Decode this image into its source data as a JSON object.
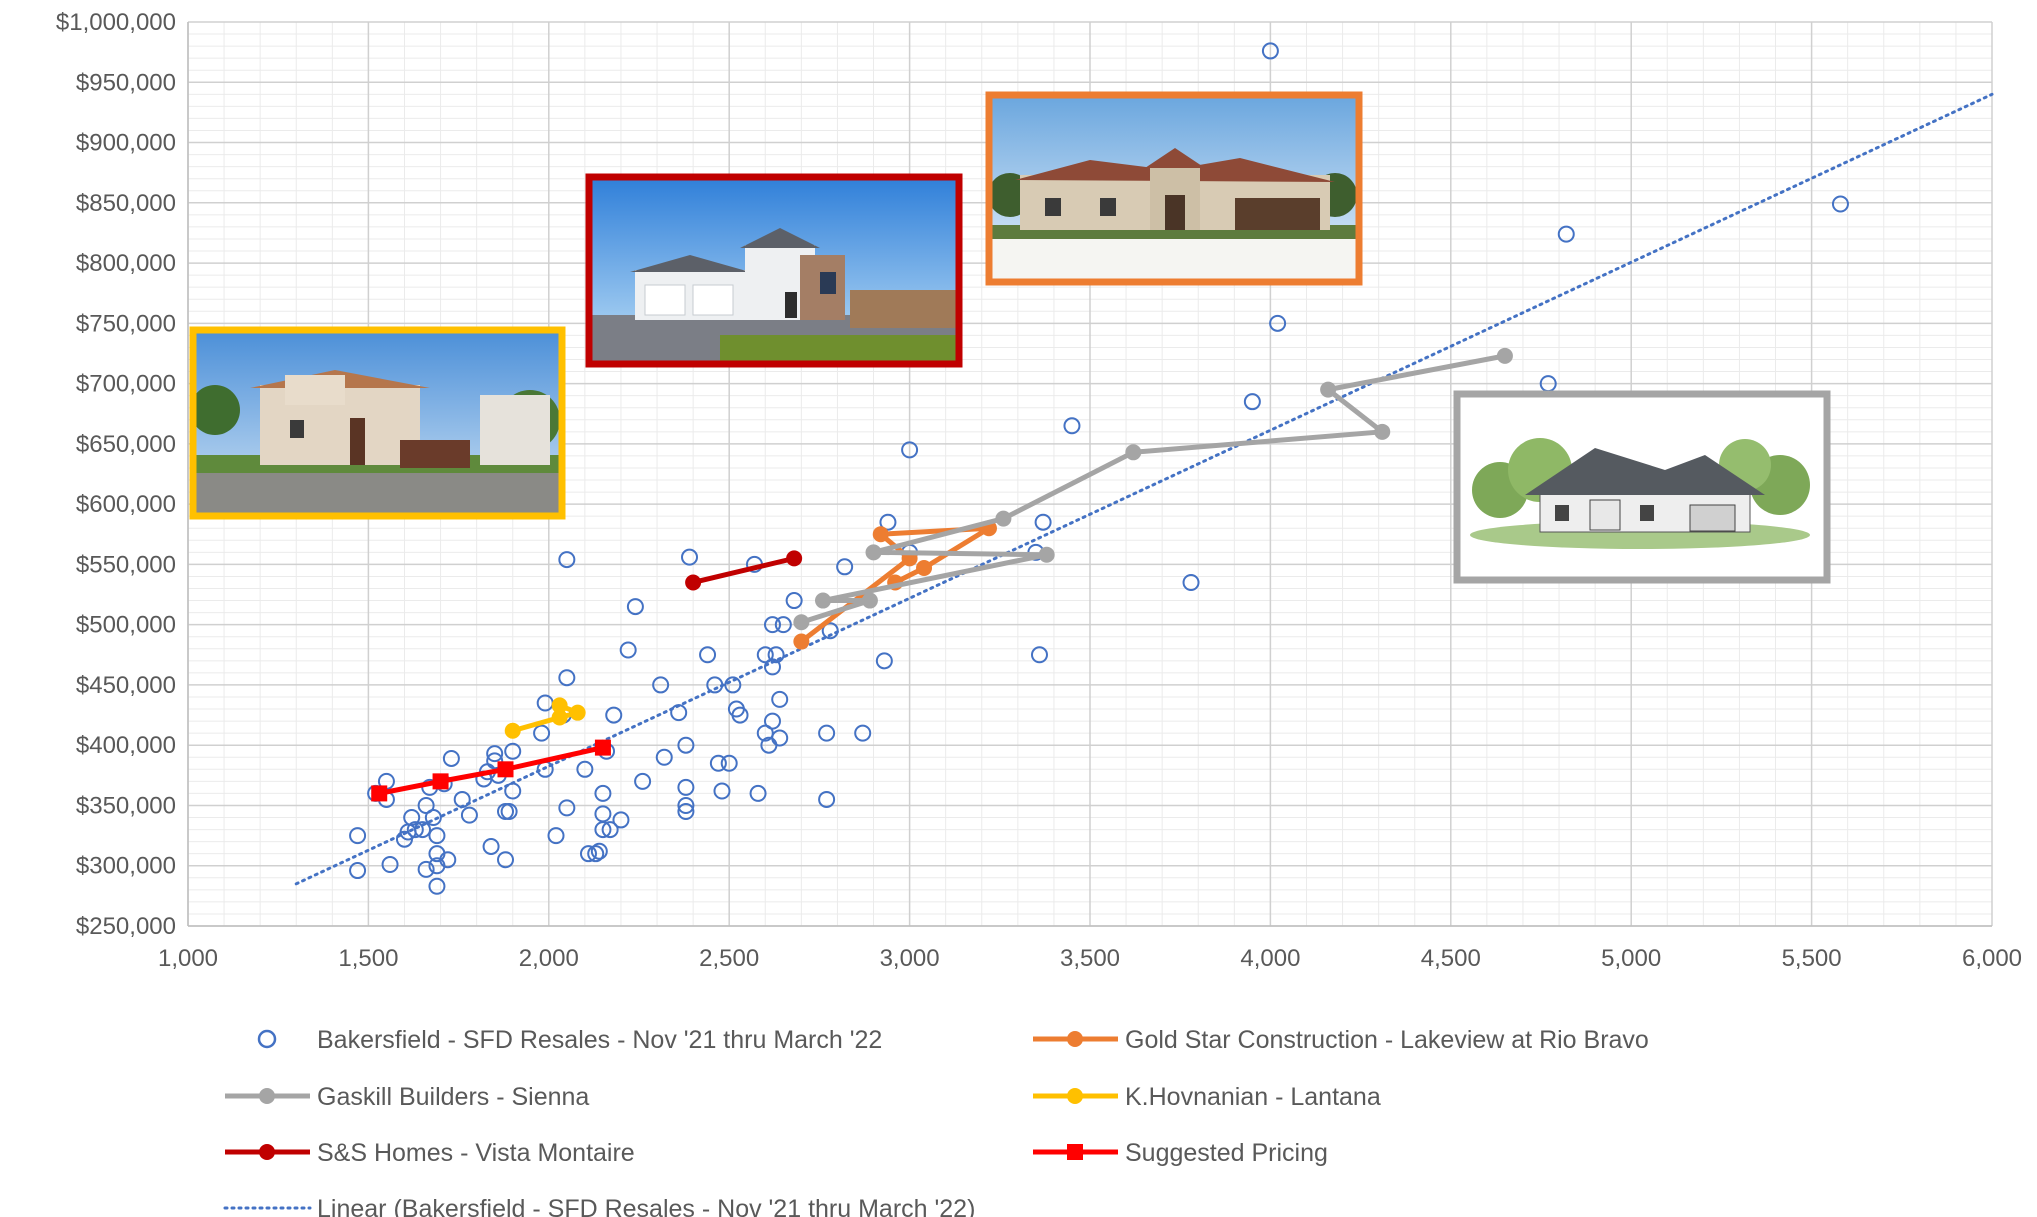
{
  "chart_data": {
    "type": "scatter",
    "title": "",
    "xlabel": "",
    "ylabel": "",
    "xlim": [
      1000,
      6000
    ],
    "ylim": [
      250000,
      1000000
    ],
    "x_ticks": [
      1000,
      1500,
      2000,
      2500,
      3000,
      3500,
      4000,
      4500,
      5000,
      5500,
      6000
    ],
    "y_ticks": [
      250000,
      300000,
      350000,
      400000,
      450000,
      500000,
      550000,
      600000,
      650000,
      700000,
      750000,
      800000,
      850000,
      900000,
      950000,
      1000000
    ],
    "x_tick_labels": [
      "1,000",
      "1,500",
      "2,000",
      "2,500",
      "3,000",
      "3,500",
      "4,000",
      "4,500",
      "5,000",
      "5,500",
      "6,000"
    ],
    "y_tick_labels": [
      "$250,000",
      "$300,000",
      "$350,000",
      "$400,000",
      "$450,000",
      "$500,000",
      "$550,000",
      "$600,000",
      "$650,000",
      "$700,000",
      "$750,000",
      "$800,000",
      "$850,000",
      "$900,000",
      "$950,000",
      "$1,000,000"
    ],
    "grid": true,
    "legend_position": "bottom",
    "resales": {
      "name": "Bakersfield - SFD Resales - Nov '21 thru March '22",
      "color": "#4472C4",
      "points": [
        [
          1470,
          296000
        ],
        [
          1470,
          325000
        ],
        [
          1520,
          360000
        ],
        [
          1550,
          370000
        ],
        [
          1550,
          355000
        ],
        [
          1560,
          301000
        ],
        [
          1600,
          322000
        ],
        [
          1610,
          328000
        ],
        [
          1620,
          340000
        ],
        [
          1630,
          330000
        ],
        [
          1650,
          330000
        ],
        [
          1660,
          297000
        ],
        [
          1660,
          350000
        ],
        [
          1670,
          365000
        ],
        [
          1680,
          340000
        ],
        [
          1690,
          325000
        ],
        [
          1690,
          310000
        ],
        [
          1690,
          300000
        ],
        [
          1690,
          283000
        ],
        [
          1710,
          368000
        ],
        [
          1720,
          305000
        ],
        [
          1730,
          389000
        ],
        [
          1760,
          355000
        ],
        [
          1780,
          342000
        ],
        [
          1820,
          372000
        ],
        [
          1830,
          378000
        ],
        [
          1840,
          316000
        ],
        [
          1850,
          393000
        ],
        [
          1850,
          387000
        ],
        [
          1860,
          375000
        ],
        [
          1880,
          305000
        ],
        [
          1880,
          345000
        ],
        [
          1890,
          345000
        ],
        [
          1900,
          362000
        ],
        [
          1900,
          395000
        ],
        [
          1980,
          410000
        ],
        [
          1990,
          435000
        ],
        [
          1990,
          380000
        ],
        [
          2020,
          325000
        ],
        [
          2040,
          425000
        ],
        [
          2050,
          456000
        ],
        [
          2050,
          348000
        ],
        [
          2050,
          554000
        ],
        [
          2100,
          380000
        ],
        [
          2110,
          310000
        ],
        [
          2130,
          310000
        ],
        [
          2140,
          312000
        ],
        [
          2150,
          360000
        ],
        [
          2150,
          343000
        ],
        [
          2150,
          330000
        ],
        [
          2160,
          395000
        ],
        [
          2170,
          330000
        ],
        [
          2180,
          425000
        ],
        [
          2200,
          338000
        ],
        [
          2220,
          479000
        ],
        [
          2240,
          515000
        ],
        [
          2260,
          370000
        ],
        [
          2310,
          450000
        ],
        [
          2320,
          390000
        ],
        [
          2360,
          427000
        ],
        [
          2380,
          400000
        ],
        [
          2380,
          365000
        ],
        [
          2380,
          350000
        ],
        [
          2380,
          345000
        ],
        [
          2390,
          556000
        ],
        [
          2440,
          475000
        ],
        [
          2460,
          450000
        ],
        [
          2470,
          385000
        ],
        [
          2480,
          362000
        ],
        [
          2500,
          385000
        ],
        [
          2510,
          450000
        ],
        [
          2520,
          430000
        ],
        [
          2530,
          425000
        ],
        [
          2570,
          550000
        ],
        [
          2580,
          360000
        ],
        [
          2600,
          475000
        ],
        [
          2600,
          410000
        ],
        [
          2610,
          400000
        ],
        [
          2620,
          420000
        ],
        [
          2620,
          500000
        ],
        [
          2620,
          465000
        ],
        [
          2630,
          475000
        ],
        [
          2640,
          406000
        ],
        [
          2640,
          438000
        ],
        [
          2650,
          500000
        ],
        [
          2680,
          520000
        ],
        [
          2770,
          355000
        ],
        [
          2770,
          410000
        ],
        [
          2780,
          495000
        ],
        [
          2820,
          548000
        ],
        [
          2870,
          410000
        ],
        [
          2930,
          470000
        ],
        [
          2940,
          585000
        ],
        [
          3000,
          645000
        ],
        [
          3000,
          560000
        ],
        [
          3350,
          560000
        ],
        [
          3360,
          475000
        ],
        [
          3370,
          585000
        ],
        [
          3450,
          665000
        ],
        [
          3780,
          535000
        ],
        [
          3950,
          685000
        ],
        [
          4000,
          976000
        ],
        [
          4020,
          750000
        ],
        [
          4770,
          700000
        ],
        [
          4820,
          824000
        ],
        [
          5580,
          849000
        ]
      ]
    },
    "series": [
      {
        "name": "Gold Star Construction - Lakeview at Rio Bravo",
        "color": "#ED7D31",
        "marker": "circle",
        "points": [
          [
            2700,
            486000
          ],
          [
            3000,
            555000
          ],
          [
            2920,
            575000
          ],
          [
            3220,
            580000
          ],
          [
            3040,
            547000
          ],
          [
            2960,
            535000
          ]
        ]
      },
      {
        "name": "Gaskill Builders - Sienna",
        "color": "#A5A5A5",
        "marker": "circle",
        "points": [
          [
            2700,
            502000
          ],
          [
            2890,
            520000
          ],
          [
            2760,
            520000
          ],
          [
            3380,
            558000
          ],
          [
            2900,
            560000
          ],
          [
            3260,
            588000
          ],
          [
            3620,
            643000
          ],
          [
            4310,
            660000
          ],
          [
            4160,
            695000
          ],
          [
            4650,
            723000
          ]
        ]
      },
      {
        "name": "K.Hovnanian - Lantana",
        "color": "#FFC000",
        "marker": "circle",
        "points": [
          [
            1900,
            412000
          ],
          [
            2030,
            423000
          ],
          [
            2080,
            427000
          ],
          [
            2030,
            433000
          ]
        ]
      },
      {
        "name": "S&S Homes - Vista Montaire",
        "color": "#C00000",
        "marker": "circle",
        "points": [
          [
            2400,
            535000
          ],
          [
            2680,
            555000
          ]
        ]
      },
      {
        "name": "Suggested Pricing",
        "color": "#FF0000",
        "marker": "square",
        "points": [
          [
            1530,
            360000
          ],
          [
            1700,
            370000
          ],
          [
            1880,
            380000
          ],
          [
            2150,
            398000
          ]
        ]
      }
    ],
    "trendline": {
      "name": "Linear (Bakersfield - SFD Resales - Nov '21 thru March '22)",
      "color": "#4472C4",
      "points": [
        [
          1300,
          285000
        ],
        [
          6000,
          940000
        ]
      ]
    },
    "photos": [
      {
        "name": "k-hovnanian-house-photo",
        "border_color": "#FFC000"
      },
      {
        "name": "ss-homes-house-photo",
        "border_color": "#C00000"
      },
      {
        "name": "gold-star-house-photo",
        "border_color": "#ED7D31"
      },
      {
        "name": "gaskill-house-rendering",
        "border_color": "#A5A5A5"
      }
    ]
  }
}
